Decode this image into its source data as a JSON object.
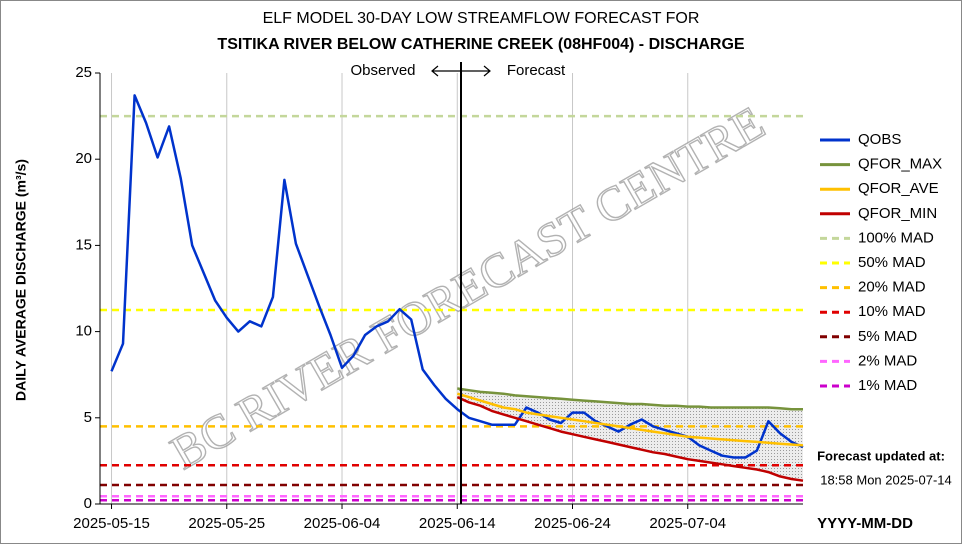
{
  "chart_data": {
    "type": "line",
    "title": "ELF MODEL 30-DAY LOW STREAMFLOW FORECAST FOR",
    "subtitle": "TSITIKA RIVER BELOW CATHERINE CREEK (08HF004) - DISCHARGE",
    "y_label": "DAILY AVERAGE DISCHARGE (m³/s)",
    "x_label": "YYYY-MM-DD",
    "annotations": {
      "observed": "Observed",
      "forecast": "Forecast",
      "watermark": "BC RIVER FORECAST CENTRE",
      "updated_label": "Forecast updated at:",
      "updated_time": "18:58 Mon 2025-07-14"
    },
    "xlim": [
      "2025-05-14",
      "2025-07-14"
    ],
    "xticks": [
      "2025-05-15",
      "2025-05-25",
      "2025-06-04",
      "2025-06-14",
      "2025-06-24",
      "2025-07-04"
    ],
    "ylim": [
      0,
      25
    ],
    "yticks": [
      0,
      5,
      10,
      15,
      20,
      25
    ],
    "grid": "x",
    "legend": "right",
    "x": [
      "2025-05-15",
      "2025-05-16",
      "2025-05-17",
      "2025-05-18",
      "2025-05-19",
      "2025-05-20",
      "2025-05-21",
      "2025-05-22",
      "2025-05-23",
      "2025-05-24",
      "2025-05-25",
      "2025-05-26",
      "2025-05-27",
      "2025-05-28",
      "2025-05-29",
      "2025-05-30",
      "2025-05-31",
      "2025-06-01",
      "2025-06-02",
      "2025-06-03",
      "2025-06-04",
      "2025-06-05",
      "2025-06-06",
      "2025-06-07",
      "2025-06-08",
      "2025-06-09",
      "2025-06-10",
      "2025-06-11",
      "2025-06-12",
      "2025-06-13",
      "2025-06-14",
      "2025-06-15",
      "2025-06-16",
      "2025-06-17",
      "2025-06-18",
      "2025-06-19",
      "2025-06-20",
      "2025-06-21",
      "2025-06-22",
      "2025-06-23",
      "2025-06-24",
      "2025-06-25",
      "2025-06-26",
      "2025-06-27",
      "2025-06-28",
      "2025-06-29",
      "2025-06-30",
      "2025-07-01",
      "2025-07-02",
      "2025-07-03",
      "2025-07-04",
      "2025-07-05",
      "2025-07-06",
      "2025-07-07",
      "2025-07-08",
      "2025-07-09",
      "2025-07-10",
      "2025-07-11",
      "2025-07-12",
      "2025-07-13",
      "2025-07-14"
    ],
    "series": [
      {
        "name": "QOBS",
        "color": "#0033cc",
        "values": [
          7.7,
          9.3,
          23.7,
          22.1,
          20.1,
          21.9,
          18.9,
          15.0,
          13.4,
          11.8,
          10.8,
          10.0,
          10.6,
          10.3,
          12.0,
          18.8,
          15.1,
          13.3,
          11.5,
          9.8,
          7.9,
          8.6,
          9.8,
          10.3,
          10.6,
          11.3,
          10.7,
          7.8,
          6.9,
          6.1,
          5.5,
          5.0,
          4.8,
          4.6,
          4.6,
          4.6,
          5.6,
          5.3,
          4.9,
          4.7,
          5.3,
          5.3,
          4.8,
          4.5,
          4.2,
          4.6,
          4.9,
          4.5,
          4.3,
          4.1,
          3.9,
          3.4,
          3.1,
          2.8,
          2.7,
          2.7,
          3.1,
          4.8,
          4.1,
          3.6,
          3.3
        ]
      },
      {
        "name": "QFOR_MAX",
        "color": "#77933c",
        "values": [
          null,
          null,
          null,
          null,
          null,
          null,
          null,
          null,
          null,
          null,
          null,
          null,
          null,
          null,
          null,
          null,
          null,
          null,
          null,
          null,
          null,
          null,
          null,
          null,
          null,
          null,
          null,
          null,
          null,
          null,
          6.7,
          6.6,
          6.5,
          6.45,
          6.4,
          6.3,
          6.25,
          6.2,
          6.15,
          6.1,
          6.05,
          6.0,
          5.95,
          5.9,
          5.85,
          5.8,
          5.8,
          5.75,
          5.7,
          5.7,
          5.65,
          5.65,
          5.6,
          5.6,
          5.6,
          5.6,
          5.6,
          5.6,
          5.55,
          5.5,
          5.5
        ]
      },
      {
        "name": "QFOR_AVE",
        "color": "#ffc000",
        "values": [
          null,
          null,
          null,
          null,
          null,
          null,
          null,
          null,
          null,
          null,
          null,
          null,
          null,
          null,
          null,
          null,
          null,
          null,
          null,
          null,
          null,
          null,
          null,
          null,
          null,
          null,
          null,
          null,
          null,
          null,
          6.4,
          6.2,
          6.0,
          5.8,
          5.6,
          5.5,
          5.3,
          5.2,
          5.1,
          5.0,
          4.9,
          4.8,
          4.7,
          4.6,
          4.5,
          4.4,
          4.3,
          4.2,
          4.1,
          4.0,
          3.9,
          3.85,
          3.8,
          3.75,
          3.7,
          3.65,
          3.6,
          3.55,
          3.5,
          3.45,
          3.4
        ]
      },
      {
        "name": "QFOR_MIN",
        "color": "#c00000",
        "values": [
          null,
          null,
          null,
          null,
          null,
          null,
          null,
          null,
          null,
          null,
          null,
          null,
          null,
          null,
          null,
          null,
          null,
          null,
          null,
          null,
          null,
          null,
          null,
          null,
          null,
          null,
          null,
          null,
          null,
          null,
          6.2,
          5.9,
          5.7,
          5.4,
          5.2,
          5.0,
          4.8,
          4.6,
          4.4,
          4.2,
          4.05,
          3.9,
          3.75,
          3.6,
          3.45,
          3.3,
          3.15,
          3.0,
          2.9,
          2.75,
          2.6,
          2.5,
          2.4,
          2.3,
          2.2,
          2.1,
          2.0,
          1.85,
          1.6,
          1.45,
          1.35
        ]
      }
    ],
    "reference_lines": [
      {
        "name": "100% MAD",
        "value": 22.5,
        "color": "#c4d79b"
      },
      {
        "name": "50% MAD",
        "value": 11.25,
        "color": "#ffff00"
      },
      {
        "name": "20% MAD",
        "value": 4.5,
        "color": "#ffc000"
      },
      {
        "name": "10% MAD",
        "value": 2.25,
        "color": "#e00000"
      },
      {
        "name": "5% MAD",
        "value": 1.1,
        "color": "#800000"
      },
      {
        "name": "2% MAD",
        "value": 0.45,
        "color": "#ff66ff"
      },
      {
        "name": "1% MAD",
        "value": 0.22,
        "color": "#cc00cc"
      }
    ]
  }
}
